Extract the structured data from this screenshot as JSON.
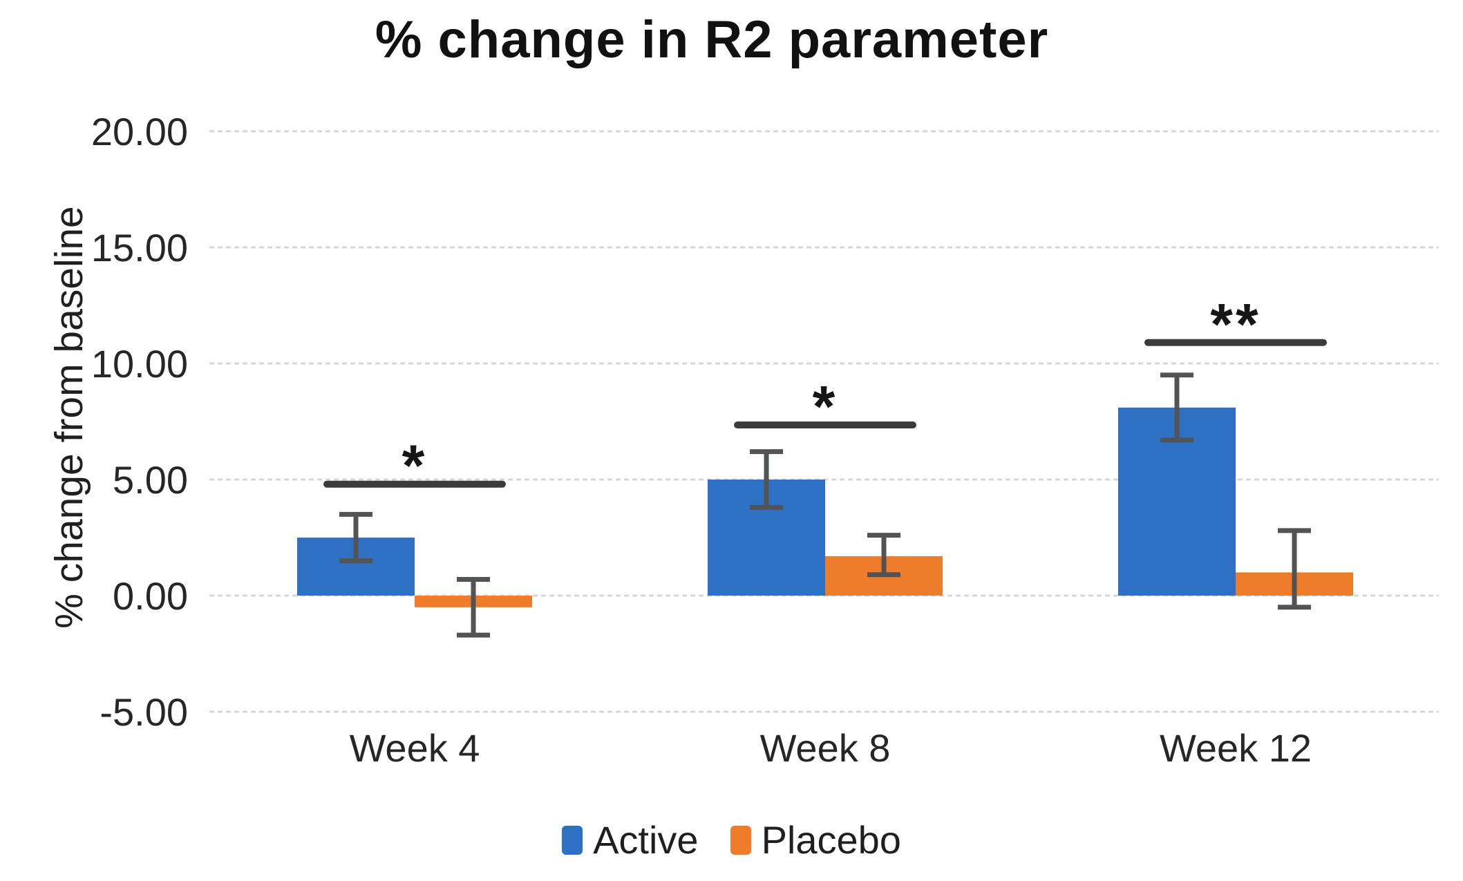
{
  "chart_data": {
    "type": "bar",
    "title": "% change in R2 parameter",
    "ylabel": "% change from baseline",
    "xlabel": "",
    "ylim": [
      -5,
      20
    ],
    "ytick_values": [
      20,
      15,
      10,
      5,
      0,
      -5
    ],
    "ytick_labels": [
      "20.00",
      "15.00",
      "10.00",
      "5.00",
      "0.00",
      "-5.00"
    ],
    "categories": [
      "Week 4",
      "Week 8",
      "Week 12"
    ],
    "series": [
      {
        "name": "Active",
        "color": "#2e71c4",
        "values": [
          2.5,
          5.0,
          8.1
        ],
        "err_low": [
          1.5,
          3.8,
          6.7
        ],
        "err_high": [
          3.5,
          6.2,
          9.5
        ]
      },
      {
        "name": "Placebo",
        "color": "#ef7c2a",
        "values": [
          -0.5,
          1.7,
          1.0
        ],
        "err_low": [
          -1.7,
          0.9,
          -0.5
        ],
        "err_high": [
          0.7,
          2.6,
          2.8
        ]
      }
    ],
    "significance": [
      {
        "category": "Week 4",
        "label": "*",
        "line_y": 4.8
      },
      {
        "category": "Week 8",
        "label": "*",
        "line_y": 7.35
      },
      {
        "category": "Week 12",
        "label": "**",
        "line_y": 10.9
      }
    ],
    "legend_position": "bottom",
    "grid": true,
    "style": {
      "grid_color": "#d6d6d6",
      "error_bar_color": "#525355",
      "sig_line_color": "#3b3b3d",
      "sig_star_color": "#161616",
      "text_color": "#262626",
      "background": "#ffffff"
    }
  }
}
